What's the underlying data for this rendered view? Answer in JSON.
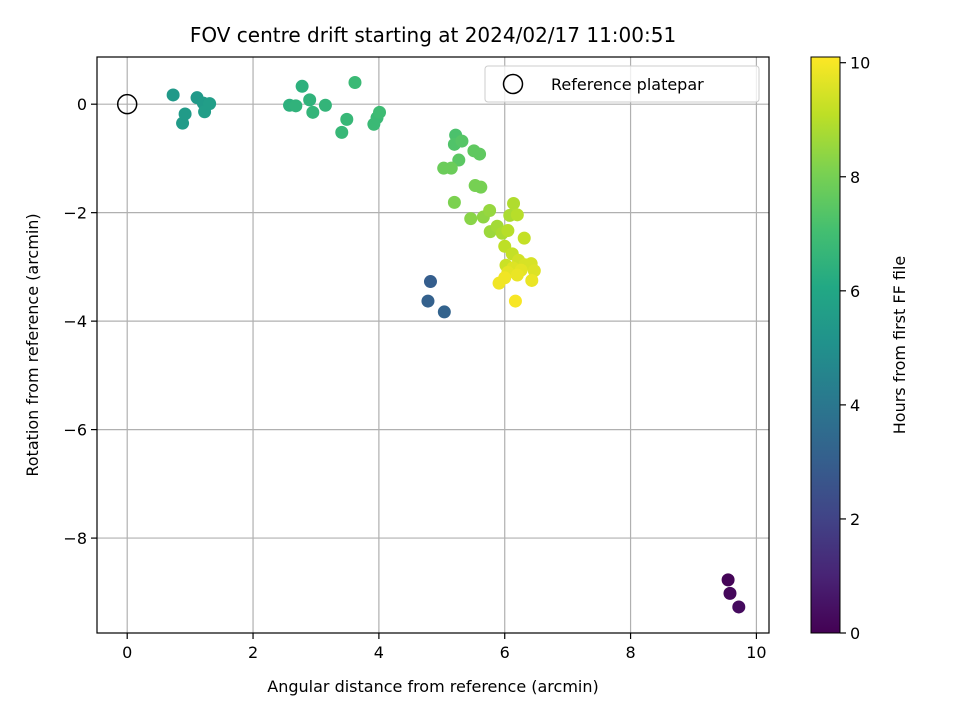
{
  "chart_data": {
    "type": "scatter",
    "title": "FOV centre drift starting at 2024/02/17 11:00:51",
    "xlabel": "Angular distance from reference (arcmin)",
    "ylabel": "Rotation from reference (arcmin)",
    "xlim": [
      -0.48,
      10.2
    ],
    "ylim": [
      -9.75,
      0.87
    ],
    "xticks": [
      0,
      2,
      4,
      6,
      8,
      10
    ],
    "yticks": [
      0,
      -2,
      -4,
      -6,
      -8
    ],
    "xtick_labels": [
      "0",
      "2",
      "4",
      "6",
      "8",
      "10"
    ],
    "ytick_labels": [
      "0",
      "−2",
      "−4",
      "−6",
      "−8"
    ],
    "grid": true,
    "legend": {
      "label": "Reference platepar",
      "placement": "top-right"
    },
    "reference_point": {
      "x": 0,
      "y": 0
    },
    "colorbar": {
      "label": "Hours from first FF file",
      "colormap": "viridis",
      "range": [
        0,
        10.1
      ],
      "ticks": [
        0,
        2,
        4,
        6,
        8,
        10
      ],
      "tick_labels": [
        "0",
        "2",
        "4",
        "6",
        "8",
        "10"
      ]
    },
    "points": [
      {
        "x": 9.55,
        "y": -8.77,
        "hours": 0.1
      },
      {
        "x": 9.58,
        "y": -9.02,
        "hours": 0.2
      },
      {
        "x": 9.72,
        "y": -9.27,
        "hours": 0.3
      },
      {
        "x": 4.82,
        "y": -3.27,
        "hours": 3.0
      },
      {
        "x": 4.78,
        "y": -3.63,
        "hours": 3.1
      },
      {
        "x": 5.04,
        "y": -3.83,
        "hours": 3.2
      },
      {
        "x": 0.73,
        "y": 0.17,
        "hours": 5.4
      },
      {
        "x": 1.11,
        "y": 0.12,
        "hours": 5.4
      },
      {
        "x": 0.88,
        "y": -0.35,
        "hours": 5.5
      },
      {
        "x": 0.92,
        "y": -0.18,
        "hours": 5.5
      },
      {
        "x": 1.21,
        "y": 0.02,
        "hours": 5.5
      },
      {
        "x": 1.23,
        "y": -0.14,
        "hours": 5.6
      },
      {
        "x": 1.31,
        "y": 0.01,
        "hours": 5.6
      },
      {
        "x": 2.78,
        "y": 0.33,
        "hours": 6.4
      },
      {
        "x": 2.58,
        "y": -0.02,
        "hours": 6.4
      },
      {
        "x": 2.68,
        "y": -0.03,
        "hours": 6.5
      },
      {
        "x": 2.9,
        "y": 0.08,
        "hours": 6.5
      },
      {
        "x": 2.95,
        "y": -0.15,
        "hours": 6.6
      },
      {
        "x": 3.15,
        "y": -0.02,
        "hours": 6.6
      },
      {
        "x": 3.41,
        "y": -0.52,
        "hours": 6.7
      },
      {
        "x": 3.49,
        "y": -0.28,
        "hours": 6.7
      },
      {
        "x": 3.62,
        "y": 0.4,
        "hours": 6.8
      },
      {
        "x": 3.92,
        "y": -0.37,
        "hours": 6.8
      },
      {
        "x": 3.97,
        "y": -0.25,
        "hours": 6.8
      },
      {
        "x": 4.01,
        "y": -0.15,
        "hours": 6.9
      },
      {
        "x": 5.22,
        "y": -0.57,
        "hours": 7.2
      },
      {
        "x": 5.2,
        "y": -0.74,
        "hours": 7.3
      },
      {
        "x": 5.32,
        "y": -0.68,
        "hours": 7.4
      },
      {
        "x": 5.27,
        "y": -1.03,
        "hours": 7.5
      },
      {
        "x": 5.51,
        "y": -0.86,
        "hours": 7.6
      },
      {
        "x": 5.6,
        "y": -0.92,
        "hours": 7.6
      },
      {
        "x": 5.03,
        "y": -1.18,
        "hours": 7.8
      },
      {
        "x": 5.15,
        "y": -1.18,
        "hours": 7.8
      },
      {
        "x": 5.53,
        "y": -1.5,
        "hours": 8.0
      },
      {
        "x": 5.62,
        "y": -1.53,
        "hours": 8.0
      },
      {
        "x": 5.2,
        "y": -1.81,
        "hours": 8.1
      },
      {
        "x": 5.46,
        "y": -2.11,
        "hours": 8.3
      },
      {
        "x": 5.66,
        "y": -2.08,
        "hours": 8.4
      },
      {
        "x": 5.76,
        "y": -1.96,
        "hours": 8.5
      },
      {
        "x": 5.77,
        "y": -2.35,
        "hours": 8.6
      },
      {
        "x": 5.88,
        "y": -2.25,
        "hours": 8.7
      },
      {
        "x": 5.96,
        "y": -2.38,
        "hours": 8.8
      },
      {
        "x": 6.08,
        "y": -2.05,
        "hours": 8.8
      },
      {
        "x": 6.14,
        "y": -1.83,
        "hours": 8.9
      },
      {
        "x": 6.2,
        "y": -2.04,
        "hours": 9.0
      },
      {
        "x": 6.05,
        "y": -2.33,
        "hours": 9.0
      },
      {
        "x": 6.0,
        "y": -2.62,
        "hours": 9.1
      },
      {
        "x": 6.12,
        "y": -2.76,
        "hours": 9.2
      },
      {
        "x": 6.31,
        "y": -2.47,
        "hours": 9.2
      },
      {
        "x": 6.02,
        "y": -2.97,
        "hours": 9.3
      },
      {
        "x": 6.22,
        "y": -2.88,
        "hours": 9.4
      },
      {
        "x": 6.32,
        "y": -2.96,
        "hours": 9.5
      },
      {
        "x": 6.42,
        "y": -2.94,
        "hours": 9.5
      },
      {
        "x": 6.47,
        "y": -3.07,
        "hours": 9.6
      },
      {
        "x": 6.13,
        "y": -3.02,
        "hours": 9.6
      },
      {
        "x": 6.26,
        "y": -3.06,
        "hours": 9.7
      },
      {
        "x": 6.05,
        "y": -3.1,
        "hours": 9.7
      },
      {
        "x": 6.2,
        "y": -3.15,
        "hours": 9.8
      },
      {
        "x": 6.43,
        "y": -3.25,
        "hours": 9.8
      },
      {
        "x": 6.0,
        "y": -3.2,
        "hours": 9.9
      },
      {
        "x": 5.91,
        "y": -3.3,
        "hours": 9.9
      },
      {
        "x": 6.17,
        "y": -3.63,
        "hours": 10.0
      }
    ]
  }
}
